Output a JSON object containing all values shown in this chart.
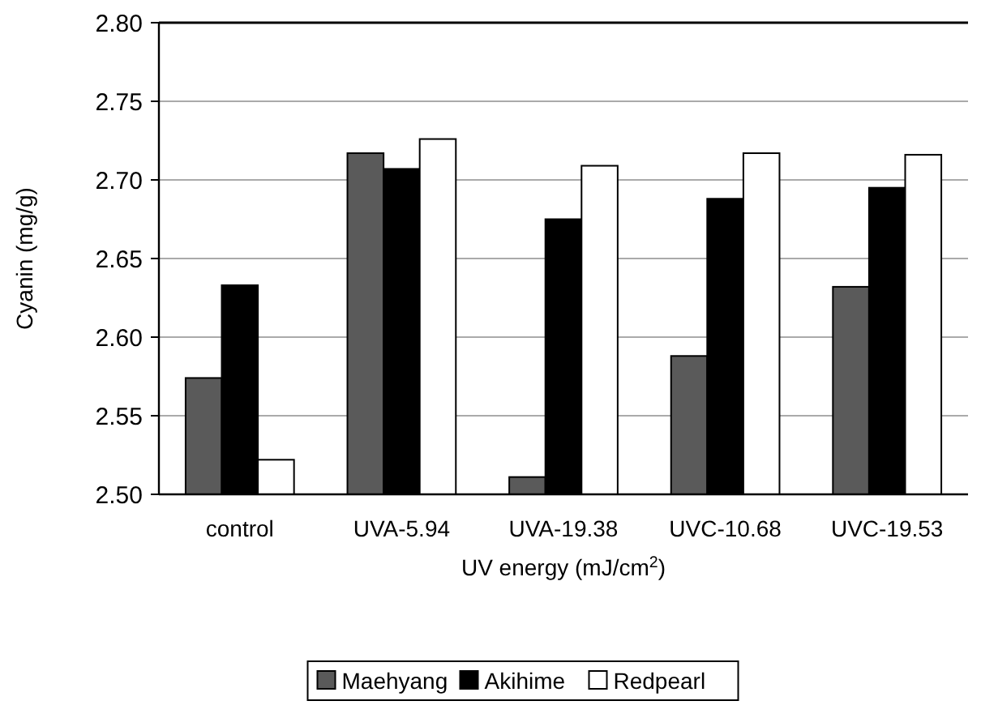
{
  "chart_data": {
    "type": "bar",
    "xlabel": "UV energy (mJ/cm$^{2}$)",
    "ylabel": "Cyanin (mg/g)",
    "categories": [
      "control",
      "UVA-5.94",
      "UVA-19.38",
      "UVC-10.68",
      "UVC-19.53"
    ],
    "series": [
      {
        "name": "Maehyang",
        "color": "#5a5a5a",
        "values": [
          2.574,
          2.717,
          2.511,
          2.588,
          2.632
        ]
      },
      {
        "name": "Akihime",
        "color": "#000000",
        "values": [
          2.633,
          2.707,
          2.675,
          2.688,
          2.695
        ]
      },
      {
        "name": "Redpearl",
        "color": "#ffffff",
        "values": [
          2.522,
          2.726,
          2.709,
          2.717,
          2.716
        ]
      }
    ],
    "ylim": [
      2.5,
      2.8
    ],
    "yticks": [
      {
        "value": 2.5,
        "label": "2.50"
      },
      {
        "value": 2.55,
        "label": "2.55"
      },
      {
        "value": 2.6,
        "label": "2.60"
      },
      {
        "value": 2.65,
        "label": "2.65"
      },
      {
        "value": 2.7,
        "label": "2.70"
      },
      {
        "value": 2.75,
        "label": "2.75"
      },
      {
        "value": 2.8,
        "label": "2.80"
      }
    ],
    "grid": "y",
    "legend": "bottom"
  }
}
